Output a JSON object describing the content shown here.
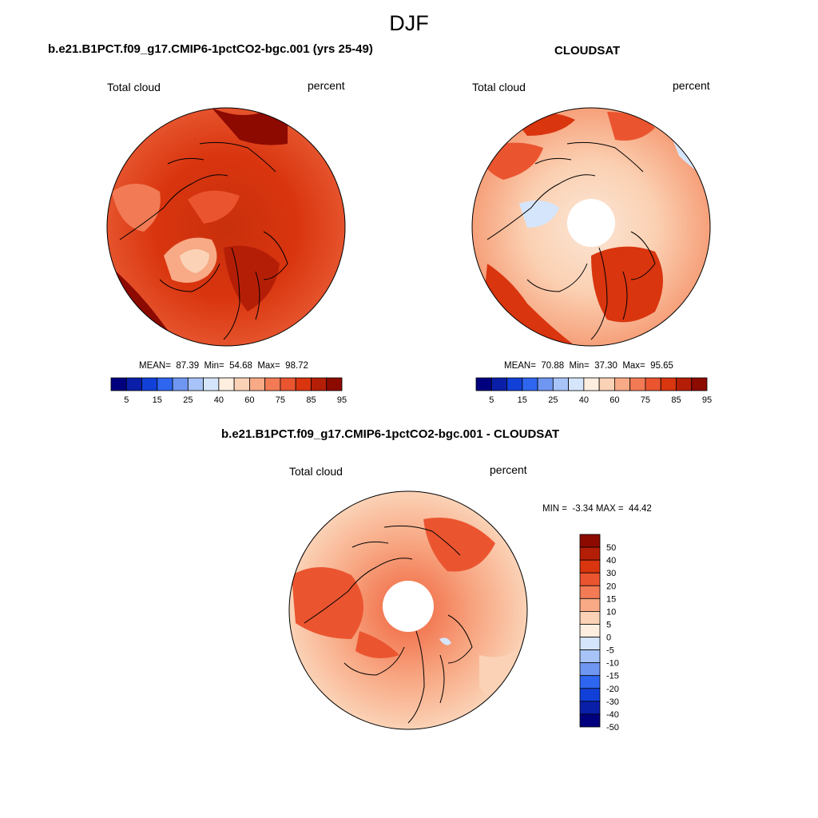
{
  "season": "DJF",
  "panels": [
    {
      "title": "b.e21.B1PCT.f09_g17.CMIP6-1pctCO2-bgc.001 (yrs 25-49)",
      "left_label": "Total cloud",
      "right_label": "percent",
      "stats": {
        "mean_label": "MEAN=",
        "mean": "87.39",
        "min_label": "Min=",
        "min": "54.68",
        "max_label": "Max=",
        "max": "98.72"
      },
      "colorbar_ticks": [
        "5",
        "15",
        "25",
        "40",
        "60",
        "75",
        "85",
        "95"
      ]
    },
    {
      "title": "CLOUDSAT",
      "left_label": "Total cloud",
      "right_label": "percent",
      "stats": {
        "mean_label": "MEAN=",
        "mean": "70.88",
        "min_label": "Min=",
        "min": "37.30",
        "max_label": "Max=",
        "max": "95.65"
      },
      "colorbar_ticks": [
        "5",
        "15",
        "25",
        "40",
        "60",
        "75",
        "85",
        "95"
      ]
    },
    {
      "title": "b.e21.B1PCT.f09_g17.CMIP6-1pctCO2-bgc.001 - CLOUDSAT",
      "left_label": "Total cloud",
      "right_label": "percent",
      "minmax": {
        "min_label": "MIN =",
        "min": "-3.34",
        "max_label": "MAX =",
        "max": "44.42"
      },
      "colorbar_ticks": [
        "50",
        "40",
        "30",
        "20",
        "15",
        "10",
        "5",
        "0",
        "-5",
        "-10",
        "-15",
        "-20",
        "-30",
        "-40",
        "-50"
      ]
    }
  ],
  "palette_abs": [
    "#00007f",
    "#0a1fa8",
    "#1140d8",
    "#2e66f0",
    "#6f97f2",
    "#a7c3f7",
    "#d5e5fb",
    "#fdeedf",
    "#fbd2b6",
    "#f8a985",
    "#f27b55",
    "#ea5530",
    "#d9350f",
    "#b51e06",
    "#8d0a00"
  ],
  "palette_diff": [
    "#8d0a00",
    "#b51e06",
    "#d9350f",
    "#ea5530",
    "#f27b55",
    "#f8a985",
    "#fbd2b6",
    "#fdeedf",
    "#d5e5fb",
    "#a7c3f7",
    "#6f97f2",
    "#2e66f0",
    "#1140d8",
    "#0a1fa8",
    "#00007f"
  ]
}
